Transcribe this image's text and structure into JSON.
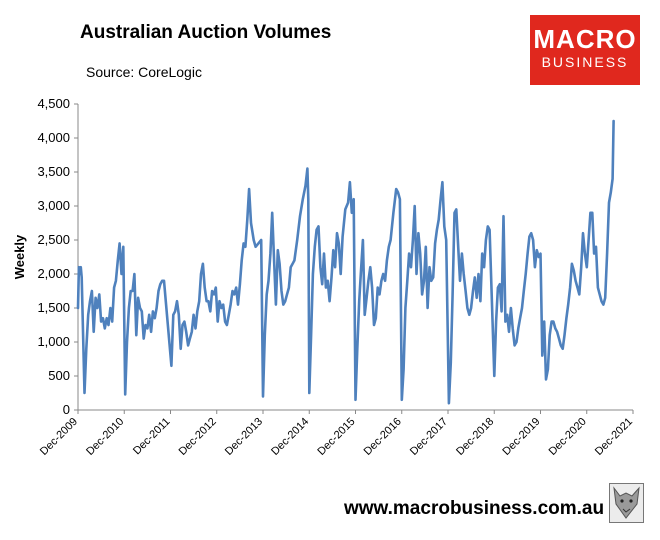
{
  "header": {
    "title": "Australian Auction Volumes",
    "source": "Source: CoreLogic"
  },
  "logo": {
    "line1": "MACRO",
    "line2": "BUSINESS"
  },
  "footer": {
    "url": "www.macrobusiness.com.au"
  },
  "chart_data": {
    "type": "line",
    "title": "Australian Auction Volumes",
    "ylabel": "Weekly",
    "xlabel": "",
    "ylim": [
      0,
      4500
    ],
    "yticks": [
      0,
      500,
      1000,
      1500,
      2000,
      2500,
      3000,
      3500,
      4000,
      4500
    ],
    "ytick_labels": [
      "0",
      "500",
      "1,000",
      "1,500",
      "2,000",
      "2,500",
      "3,000",
      "3,500",
      "4,000",
      "4,500"
    ],
    "xlim": [
      2009.92,
      2021.92
    ],
    "xticks": [
      2009.92,
      2010.92,
      2011.92,
      2012.92,
      2013.92,
      2014.92,
      2015.92,
      2016.92,
      2017.92,
      2018.92,
      2019.92,
      2020.92,
      2021.92
    ],
    "xtick_labels": [
      "Dec-2009",
      "Dec-2010",
      "Dec-2011",
      "Dec-2012",
      "Dec-2013",
      "Dec-2014",
      "Dec-2015",
      "Dec-2016",
      "Dec-2017",
      "Dec-2018",
      "Dec-2019",
      "Dec-2020",
      "Dec-2021"
    ],
    "grid": false,
    "legend": "none",
    "color": "#4f81bd",
    "series": [
      {
        "points": [
          [
            2009.92,
            1500
          ],
          [
            2009.94,
            2100
          ],
          [
            2009.96,
            2000
          ],
          [
            2009.98,
            2100
          ],
          [
            2010.0,
            1950
          ],
          [
            2010.06,
            250
          ],
          [
            2010.1,
            900
          ],
          [
            2010.14,
            1400
          ],
          [
            2010.18,
            1600
          ],
          [
            2010.22,
            1750
          ],
          [
            2010.26,
            1150
          ],
          [
            2010.3,
            1650
          ],
          [
            2010.34,
            1500
          ],
          [
            2010.38,
            1700
          ],
          [
            2010.42,
            1300
          ],
          [
            2010.46,
            1350
          ],
          [
            2010.5,
            1200
          ],
          [
            2010.54,
            1350
          ],
          [
            2010.58,
            1250
          ],
          [
            2010.62,
            1500
          ],
          [
            2010.66,
            1300
          ],
          [
            2010.7,
            1800
          ],
          [
            2010.74,
            1900
          ],
          [
            2010.78,
            2200
          ],
          [
            2010.82,
            2450
          ],
          [
            2010.86,
            2000
          ],
          [
            2010.9,
            2400
          ],
          [
            2010.94,
            230
          ],
          [
            2010.98,
            1000
          ],
          [
            2011.02,
            1500
          ],
          [
            2011.06,
            1750
          ],
          [
            2011.1,
            1750
          ],
          [
            2011.14,
            2000
          ],
          [
            2011.18,
            1100
          ],
          [
            2011.22,
            1650
          ],
          [
            2011.26,
            1500
          ],
          [
            2011.3,
            1450
          ],
          [
            2011.34,
            1050
          ],
          [
            2011.38,
            1250
          ],
          [
            2011.42,
            1200
          ],
          [
            2011.46,
            1400
          ],
          [
            2011.5,
            1150
          ],
          [
            2011.54,
            1450
          ],
          [
            2011.58,
            1350
          ],
          [
            2011.62,
            1500
          ],
          [
            2011.66,
            1750
          ],
          [
            2011.7,
            1850
          ],
          [
            2011.74,
            1900
          ],
          [
            2011.78,
            1900
          ],
          [
            2011.94,
            650
          ],
          [
            2011.98,
            1400
          ],
          [
            2012.02,
            1450
          ],
          [
            2012.06,
            1600
          ],
          [
            2012.1,
            1400
          ],
          [
            2012.14,
            900
          ],
          [
            2012.18,
            1250
          ],
          [
            2012.22,
            1300
          ],
          [
            2012.26,
            1150
          ],
          [
            2012.3,
            950
          ],
          [
            2012.34,
            1050
          ],
          [
            2012.38,
            1150
          ],
          [
            2012.42,
            1400
          ],
          [
            2012.46,
            1200
          ],
          [
            2012.5,
            1450
          ],
          [
            2012.54,
            1600
          ],
          [
            2012.58,
            2000
          ],
          [
            2012.62,
            2150
          ],
          [
            2012.66,
            1800
          ],
          [
            2012.7,
            1600
          ],
          [
            2012.74,
            1600
          ],
          [
            2012.78,
            1450
          ],
          [
            2012.82,
            1750
          ],
          [
            2012.86,
            1700
          ],
          [
            2012.9,
            1800
          ],
          [
            2012.94,
            1300
          ],
          [
            2012.98,
            1600
          ],
          [
            2013.02,
            1500
          ],
          [
            2013.06,
            1550
          ],
          [
            2013.1,
            1300
          ],
          [
            2013.14,
            1250
          ],
          [
            2013.18,
            1400
          ],
          [
            2013.22,
            1550
          ],
          [
            2013.26,
            1750
          ],
          [
            2013.3,
            1700
          ],
          [
            2013.34,
            1800
          ],
          [
            2013.38,
            1550
          ],
          [
            2013.42,
            1850
          ],
          [
            2013.46,
            2200
          ],
          [
            2013.5,
            2450
          ],
          [
            2013.54,
            2400
          ],
          [
            2013.58,
            2800
          ],
          [
            2013.62,
            3250
          ],
          [
            2013.66,
            2750
          ],
          [
            2013.72,
            2500
          ],
          [
            2013.76,
            2400
          ],
          [
            2013.82,
            2450
          ],
          [
            2013.88,
            2500
          ],
          [
            2013.92,
            200
          ],
          [
            2013.96,
            1100
          ],
          [
            2014.0,
            1700
          ],
          [
            2014.04,
            1900
          ],
          [
            2014.08,
            2300
          ],
          [
            2014.12,
            2900
          ],
          [
            2014.16,
            2200
          ],
          [
            2014.2,
            1550
          ],
          [
            2014.24,
            2350
          ],
          [
            2014.28,
            2150
          ],
          [
            2014.32,
            1750
          ],
          [
            2014.36,
            1550
          ],
          [
            2014.4,
            1600
          ],
          [
            2014.44,
            1700
          ],
          [
            2014.48,
            1800
          ],
          [
            2014.52,
            2100
          ],
          [
            2014.56,
            2150
          ],
          [
            2014.6,
            2200
          ],
          [
            2014.66,
            2500
          ],
          [
            2014.72,
            2850
          ],
          [
            2014.78,
            3100
          ],
          [
            2014.84,
            3300
          ],
          [
            2014.88,
            3550
          ],
          [
            2014.9,
            3100
          ],
          [
            2014.92,
            250
          ],
          [
            2014.96,
            1100
          ],
          [
            2015.0,
            2000
          ],
          [
            2015.04,
            2400
          ],
          [
            2015.08,
            2650
          ],
          [
            2015.12,
            2700
          ],
          [
            2015.16,
            2100
          ],
          [
            2015.2,
            1850
          ],
          [
            2015.24,
            2300
          ],
          [
            2015.28,
            1800
          ],
          [
            2015.32,
            1900
          ],
          [
            2015.36,
            1600
          ],
          [
            2015.4,
            1950
          ],
          [
            2015.44,
            2350
          ],
          [
            2015.48,
            2100
          ],
          [
            2015.52,
            2600
          ],
          [
            2015.56,
            2450
          ],
          [
            2015.6,
            2000
          ],
          [
            2015.64,
            2550
          ],
          [
            2015.7,
            2950
          ],
          [
            2015.76,
            3050
          ],
          [
            2015.8,
            3350
          ],
          [
            2015.84,
            2900
          ],
          [
            2015.88,
            3100
          ],
          [
            2015.92,
            150
          ],
          [
            2015.96,
            900
          ],
          [
            2016.0,
            1600
          ],
          [
            2016.04,
            2050
          ],
          [
            2016.08,
            2500
          ],
          [
            2016.12,
            1400
          ],
          [
            2016.16,
            1650
          ],
          [
            2016.2,
            1900
          ],
          [
            2016.24,
            2100
          ],
          [
            2016.28,
            1800
          ],
          [
            2016.32,
            1250
          ],
          [
            2016.36,
            1350
          ],
          [
            2016.4,
            1800
          ],
          [
            2016.44,
            1700
          ],
          [
            2016.48,
            1900
          ],
          [
            2016.52,
            2000
          ],
          [
            2016.56,
            1900
          ],
          [
            2016.6,
            2200
          ],
          [
            2016.64,
            2400
          ],
          [
            2016.68,
            2500
          ],
          [
            2016.74,
            2900
          ],
          [
            2016.8,
            3250
          ],
          [
            2016.84,
            3200
          ],
          [
            2016.88,
            3100
          ],
          [
            2016.92,
            150
          ],
          [
            2016.96,
            600
          ],
          [
            2017.0,
            1500
          ],
          [
            2017.04,
            1900
          ],
          [
            2017.08,
            2300
          ],
          [
            2017.12,
            2100
          ],
          [
            2017.16,
            2500
          ],
          [
            2017.2,
            3000
          ],
          [
            2017.24,
            2000
          ],
          [
            2017.28,
            2600
          ],
          [
            2017.32,
            2300
          ],
          [
            2017.36,
            1700
          ],
          [
            2017.4,
            1900
          ],
          [
            2017.44,
            2400
          ],
          [
            2017.48,
            1500
          ],
          [
            2017.52,
            2100
          ],
          [
            2017.56,
            1900
          ],
          [
            2017.6,
            1950
          ],
          [
            2017.64,
            2450
          ],
          [
            2017.68,
            2650
          ],
          [
            2017.72,
            2800
          ],
          [
            2017.76,
            3100
          ],
          [
            2017.8,
            3350
          ],
          [
            2017.84,
            2700
          ],
          [
            2017.88,
            2500
          ],
          [
            2017.94,
            100
          ],
          [
            2017.98,
            700
          ],
          [
            2018.02,
            1700
          ],
          [
            2018.06,
            2900
          ],
          [
            2018.1,
            2950
          ],
          [
            2018.14,
            2400
          ],
          [
            2018.18,
            1900
          ],
          [
            2018.22,
            2300
          ],
          [
            2018.26,
            2000
          ],
          [
            2018.3,
            1750
          ],
          [
            2018.34,
            1500
          ],
          [
            2018.38,
            1400
          ],
          [
            2018.42,
            1500
          ],
          [
            2018.46,
            1750
          ],
          [
            2018.5,
            1950
          ],
          [
            2018.54,
            1650
          ],
          [
            2018.58,
            2000
          ],
          [
            2018.62,
            1600
          ],
          [
            2018.66,
            2300
          ],
          [
            2018.7,
            2100
          ],
          [
            2018.74,
            2500
          ],
          [
            2018.78,
            2700
          ],
          [
            2018.82,
            2650
          ],
          [
            2018.92,
            500
          ],
          [
            2018.96,
            1300
          ],
          [
            2019.0,
            1800
          ],
          [
            2019.04,
            1850
          ],
          [
            2019.08,
            1450
          ],
          [
            2019.12,
            2850
          ],
          [
            2019.16,
            1300
          ],
          [
            2019.2,
            1400
          ],
          [
            2019.24,
            1150
          ],
          [
            2019.28,
            1500
          ],
          [
            2019.32,
            1200
          ],
          [
            2019.36,
            950
          ],
          [
            2019.4,
            1000
          ],
          [
            2019.44,
            1200
          ],
          [
            2019.48,
            1350
          ],
          [
            2019.52,
            1500
          ],
          [
            2019.56,
            1750
          ],
          [
            2019.6,
            2000
          ],
          [
            2019.64,
            2300
          ],
          [
            2019.68,
            2550
          ],
          [
            2019.72,
            2600
          ],
          [
            2019.76,
            2500
          ],
          [
            2019.8,
            2100
          ],
          [
            2019.84,
            2350
          ],
          [
            2019.88,
            2250
          ],
          [
            2019.92,
            2300
          ],
          [
            2019.96,
            800
          ],
          [
            2020.0,
            1300
          ],
          [
            2020.04,
            450
          ],
          [
            2020.08,
            600
          ],
          [
            2020.12,
            1100
          ],
          [
            2020.16,
            1300
          ],
          [
            2020.2,
            1300
          ],
          [
            2020.24,
            1200
          ],
          [
            2020.28,
            1150
          ],
          [
            2020.32,
            1050
          ],
          [
            2020.36,
            950
          ],
          [
            2020.4,
            900
          ],
          [
            2020.44,
            1100
          ],
          [
            2020.48,
            1350
          ],
          [
            2020.52,
            1550
          ],
          [
            2020.56,
            1800
          ],
          [
            2020.6,
            2150
          ],
          [
            2020.64,
            2050
          ],
          [
            2020.68,
            1900
          ],
          [
            2020.72,
            1800
          ],
          [
            2020.76,
            1700
          ],
          [
            2020.8,
            2100
          ],
          [
            2020.84,
            2600
          ],
          [
            2020.88,
            2300
          ],
          [
            2020.92,
            2100
          ],
          [
            2020.96,
            2500
          ],
          [
            2021.0,
            2900
          ],
          [
            2021.04,
            2900
          ],
          [
            2021.08,
            2300
          ],
          [
            2021.12,
            2400
          ],
          [
            2021.16,
            1800
          ],
          [
            2021.2,
            1700
          ],
          [
            2021.24,
            1600
          ],
          [
            2021.28,
            1550
          ],
          [
            2021.32,
            1650
          ],
          [
            2021.36,
            2300
          ],
          [
            2021.4,
            3050
          ],
          [
            2021.44,
            3200
          ],
          [
            2021.48,
            3400
          ],
          [
            2021.5,
            4250
          ]
        ]
      }
    ]
  }
}
